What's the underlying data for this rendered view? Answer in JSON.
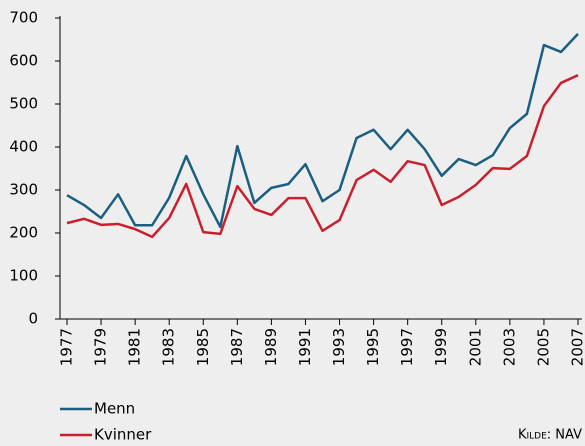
{
  "chart_data": {
    "type": "line",
    "x": [
      1977,
      1978,
      1979,
      1980,
      1981,
      1982,
      1983,
      1984,
      1985,
      1986,
      1987,
      1988,
      1989,
      1990,
      1991,
      1992,
      1993,
      1994,
      1995,
      1996,
      1997,
      1998,
      1999,
      2000,
      2001,
      2002,
      2003,
      2004,
      2005,
      2006,
      2007
    ],
    "xlim": [
      1977,
      2007
    ],
    "xticks": [
      1977,
      1979,
      1981,
      1983,
      1985,
      1987,
      1989,
      1991,
      1993,
      1995,
      1997,
      1999,
      2001,
      2003,
      2005,
      2007
    ],
    "ylim": [
      0,
      700
    ],
    "yticks": [
      0,
      100,
      200,
      300,
      400,
      500,
      600,
      700
    ],
    "grid": false,
    "legend": "bottom-left",
    "series": [
      {
        "name": "Menn",
        "color": "#1b5f80",
        "values": [
          288,
          265,
          235,
          290,
          218,
          218,
          282,
          379,
          290,
          214,
          402,
          270,
          305,
          314,
          360,
          274,
          300,
          421,
          440,
          395,
          440,
          395,
          333,
          372,
          358,
          381,
          444,
          477,
          637,
          621,
          663
        ]
      },
      {
        "name": "Kvinner",
        "color": "#c8202f",
        "values": [
          223,
          233,
          219,
          221,
          209,
          191,
          235,
          314,
          202,
          198,
          309,
          256,
          242,
          281,
          281,
          205,
          230,
          323,
          347,
          319,
          367,
          358,
          265,
          284,
          312,
          351,
          349,
          379,
          495,
          549,
          567
        ]
      }
    ],
    "source": "Kilde: NAV"
  }
}
